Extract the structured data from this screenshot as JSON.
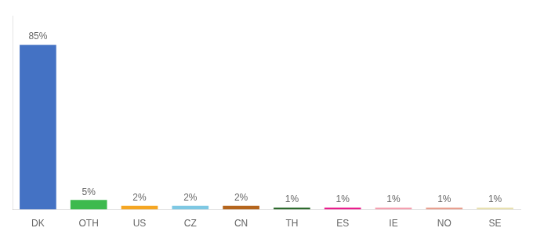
{
  "chart_data": {
    "type": "bar",
    "categories": [
      "DK",
      "OTH",
      "US",
      "CZ",
      "CN",
      "TH",
      "ES",
      "IE",
      "NO",
      "SE"
    ],
    "values": [
      85,
      5,
      2,
      2,
      2,
      1,
      1,
      1,
      1,
      1
    ],
    "value_labels": [
      "85%",
      "5%",
      "2%",
      "2%",
      "2%",
      "1%",
      "1%",
      "1%",
      "1%",
      "1%"
    ],
    "colors": [
      "#4472c4",
      "#3dba4e",
      "#f5a623",
      "#7ec8e3",
      "#b5651d",
      "#2d6a2d",
      "#e91e8c",
      "#f4a0b0",
      "#e8a090",
      "#e8e0b0"
    ],
    "data_labels": true,
    "ylim": [
      0,
      100
    ],
    "tick_labels": "x",
    "grid": false
  }
}
